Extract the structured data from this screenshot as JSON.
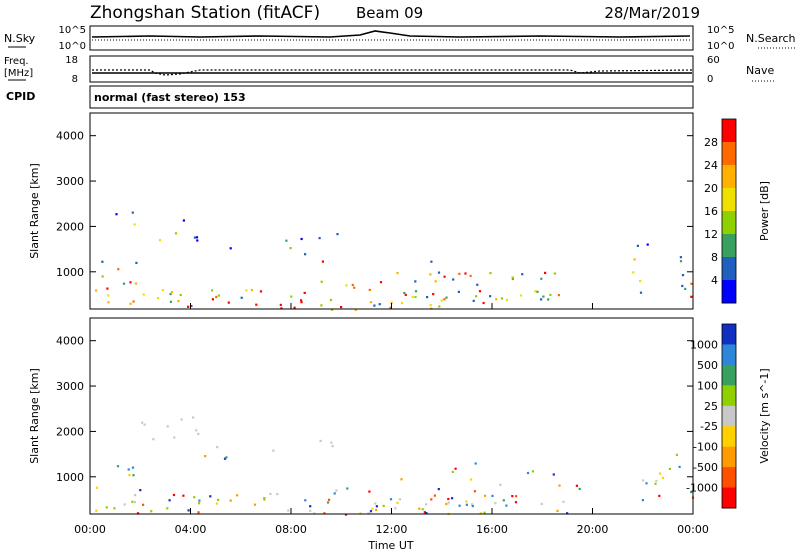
{
  "header": {
    "station": "Zhongshan Station (fitACF)",
    "beam": "Beam 09",
    "date": "28/Mar/2019"
  },
  "top_panels": {
    "nsky_label": "N.Sky",
    "nsky_ticks": [
      "10^5",
      "10^0"
    ],
    "nsearch_label": "N.Search",
    "nsearch_ticks": [
      "10^5",
      "10^0"
    ],
    "freq_label_1": "Freq.",
    "freq_label_2": "[MHz]",
    "freq_ticks": [
      "18",
      "8"
    ],
    "nave_label": "Nave",
    "nave_ticks": [
      "60",
      "0"
    ],
    "cpid_label": "CPID",
    "cpid_text": "normal (fast stereo) 153"
  },
  "chart_data": [
    {
      "type": "heatmap",
      "name": "power",
      "ylabel": "Slant Range [km]",
      "yticks": [
        "4000",
        "3000",
        "2000",
        "1000"
      ],
      "ylim": [
        180,
        4500
      ],
      "colorbar_label": "Power [dB]",
      "colorbar_ticks": [
        "28",
        "24",
        "20",
        "16",
        "12",
        "8",
        "4"
      ],
      "colorbar_colors": [
        "#ff0000",
        "#ff6a00",
        "#ffb000",
        "#f0e000",
        "#8fd000",
        "#3aa060",
        "#1e5fbf",
        "#0000ff"
      ]
    },
    {
      "type": "heatmap",
      "name": "velocity",
      "ylabel": "Slant Range [km]",
      "yticks": [
        "4000",
        "3000",
        "2000",
        "1000"
      ],
      "ylim": [
        180,
        4500
      ],
      "colorbar_label": "Velocity [m s^-1]",
      "colorbar_ticks": [
        "1000",
        "500",
        "100",
        "25",
        "-25",
        "-100",
        "-500",
        "-1000"
      ],
      "colorbar_colors": [
        "#1030c0",
        "#2e86d9",
        "#3aa060",
        "#8fd000",
        "#c8c8c8",
        "#ffd000",
        "#ff9a00",
        "#ff5000",
        "#ff0000"
      ]
    }
  ],
  "xaxis": {
    "label": "Time UT",
    "ticks": [
      "00:00",
      "04:00",
      "08:00",
      "12:00",
      "16:00",
      "20:00",
      "00:00"
    ]
  }
}
